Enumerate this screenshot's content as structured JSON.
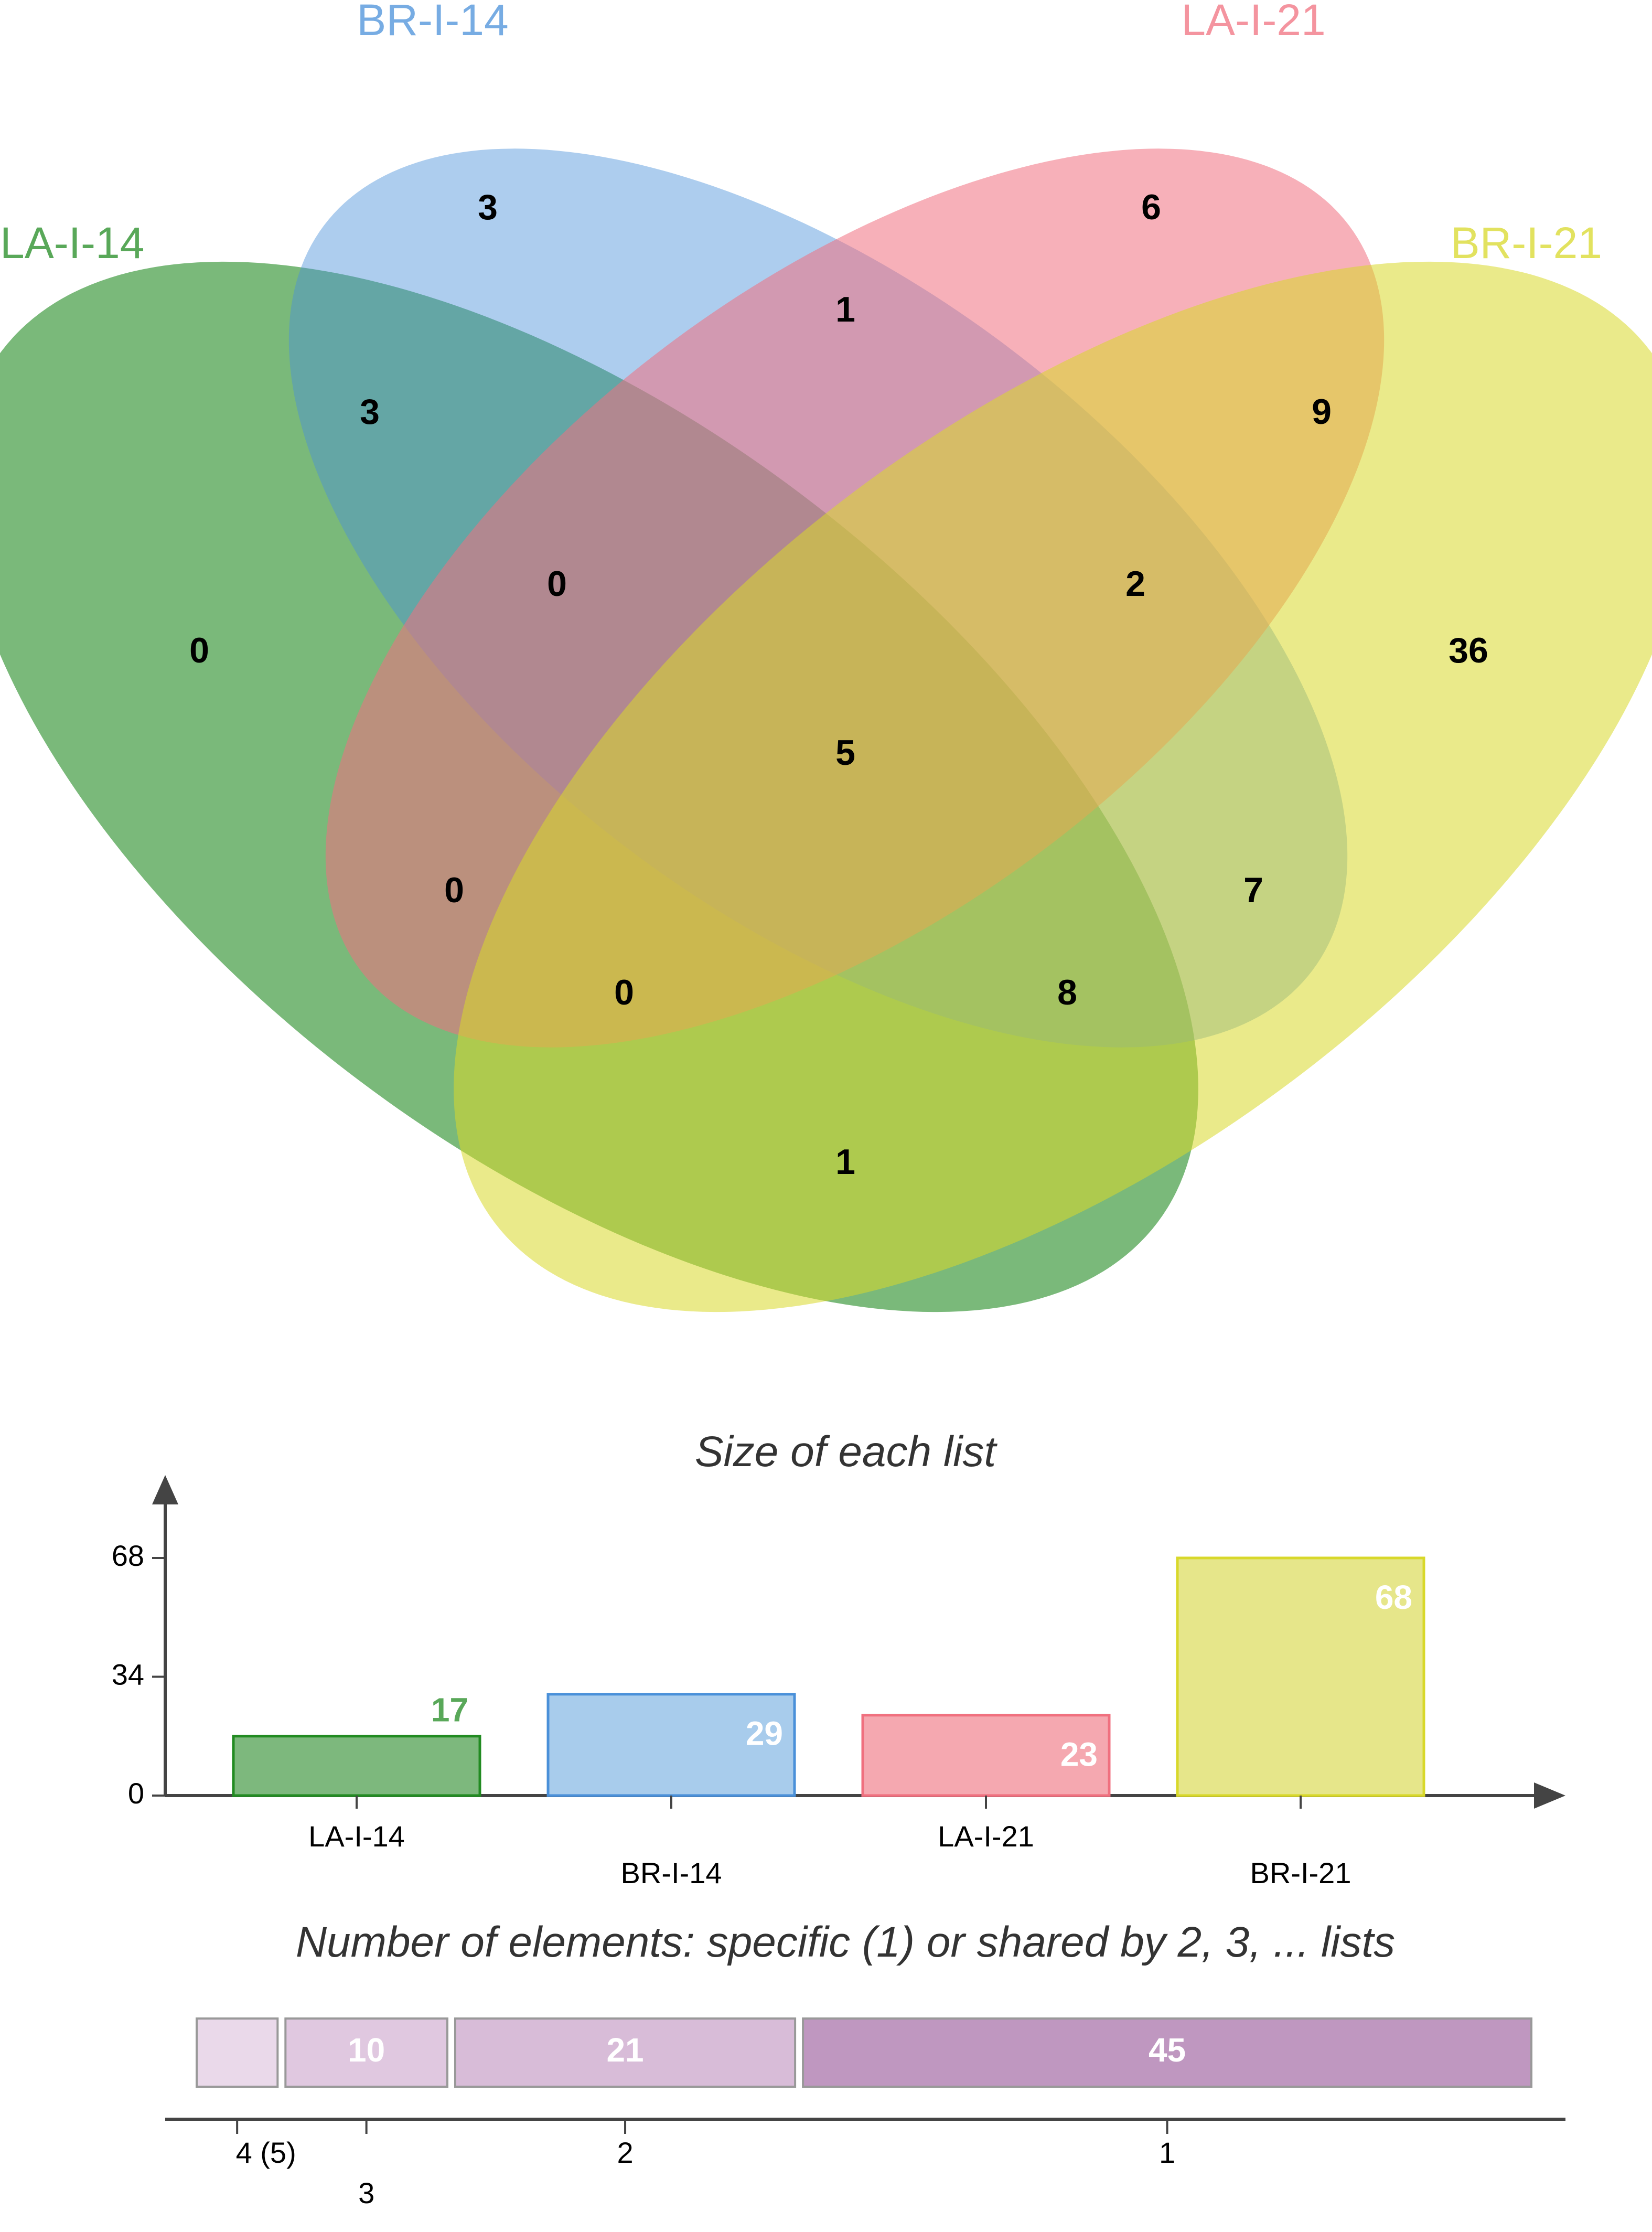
{
  "chart_data": [
    {
      "type": "venn",
      "sets": [
        {
          "name": "LA-I-14",
          "color": "#228B22"
        },
        {
          "name": "BR-I-14",
          "color": "#4A90D9"
        },
        {
          "name": "LA-I-21",
          "color": "#F0707F"
        },
        {
          "name": "BR-I-21",
          "color": "#D8D82A"
        }
      ],
      "regions": [
        {
          "sets": [
            "LA-I-14"
          ],
          "count": 0
        },
        {
          "sets": [
            "BR-I-14"
          ],
          "count": 3
        },
        {
          "sets": [
            "LA-I-21"
          ],
          "count": 6
        },
        {
          "sets": [
            "BR-I-21"
          ],
          "count": 36
        },
        {
          "sets": [
            "LA-I-14",
            "BR-I-14"
          ],
          "count": 3
        },
        {
          "sets": [
            "BR-I-14",
            "LA-I-21"
          ],
          "count": 1
        },
        {
          "sets": [
            "LA-I-21",
            "BR-I-21"
          ],
          "count": 9
        },
        {
          "sets": [
            "LA-I-14",
            "BR-I-14",
            "LA-I-21"
          ],
          "count": 0
        },
        {
          "sets": [
            "BR-I-14",
            "LA-I-21",
            "BR-I-21"
          ],
          "count": 2
        },
        {
          "sets": [
            "LA-I-14",
            "BR-I-14",
            "LA-I-21",
            "BR-I-21"
          ],
          "count": 5
        },
        {
          "sets": [
            "LA-I-14",
            "LA-I-21"
          ],
          "count": 0
        },
        {
          "sets": [
            "BR-I-14",
            "BR-I-21"
          ],
          "count": 7
        },
        {
          "sets": [
            "LA-I-14",
            "LA-I-21",
            "BR-I-21"
          ],
          "count": 0
        },
        {
          "sets": [
            "LA-I-14",
            "BR-I-14",
            "BR-I-21"
          ],
          "count": 8
        },
        {
          "sets": [
            "LA-I-14",
            "BR-I-21"
          ],
          "count": 1
        }
      ]
    },
    {
      "type": "bar",
      "title": "Size of each list",
      "categories": [
        "LA-I-14",
        "BR-I-14",
        "LA-I-21",
        "BR-I-21"
      ],
      "values": [
        17,
        29,
        23,
        68
      ],
      "colors": [
        "#7DB87D",
        "#A8CCEC",
        "#F5A8B0",
        "#E6E68A"
      ],
      "yticks": [
        0,
        34,
        68
      ],
      "ylim": [
        0,
        68
      ]
    },
    {
      "type": "bar",
      "orientation": "horizontal-stacked",
      "title": "Number of elements: specific (1) or shared by 2, 3, ... lists",
      "segments": [
        {
          "label": "4 (5)",
          "value": 5,
          "text": "",
          "color": "#EAD9EA"
        },
        {
          "label": "3",
          "value": 10,
          "text": "10",
          "color": "#E0C8E0"
        },
        {
          "label": "2",
          "value": 21,
          "text": "21",
          "color": "#D8BCD8"
        },
        {
          "label": "1",
          "value": 45,
          "text": "45",
          "color": "#BF97C0"
        }
      ]
    }
  ]
}
